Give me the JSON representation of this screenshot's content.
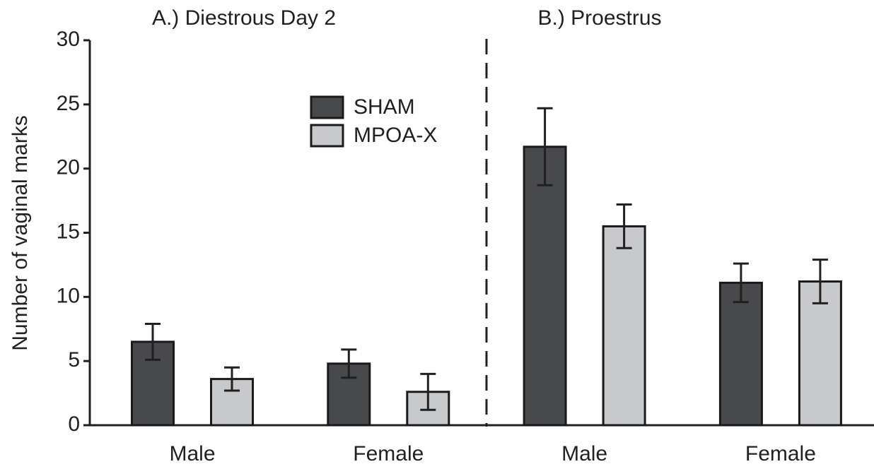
{
  "chart_data": {
    "type": "bar",
    "panel_titles": [
      "A.) Diestrous Day 2",
      "B.) Proestrus"
    ],
    "ylabel": "Number of vaginal marks",
    "categories": [
      "Male",
      "Female",
      "Male",
      "Female"
    ],
    "series": [
      {
        "name": "SHAM",
        "color": "#48494b",
        "values": [
          6.5,
          4.8,
          21.7,
          11.1
        ],
        "errors": [
          1.4,
          1.1,
          3.0,
          1.5
        ]
      },
      {
        "name": "MPOA-X",
        "color": "#c8c9cb",
        "values": [
          3.6,
          2.6,
          15.5,
          11.2
        ],
        "errors": [
          0.9,
          1.4,
          1.7,
          1.7
        ]
      }
    ],
    "ylim": [
      0,
      30
    ],
    "yticks": [
      0,
      5,
      10,
      15,
      20,
      25,
      30
    ],
    "grid": false
  }
}
